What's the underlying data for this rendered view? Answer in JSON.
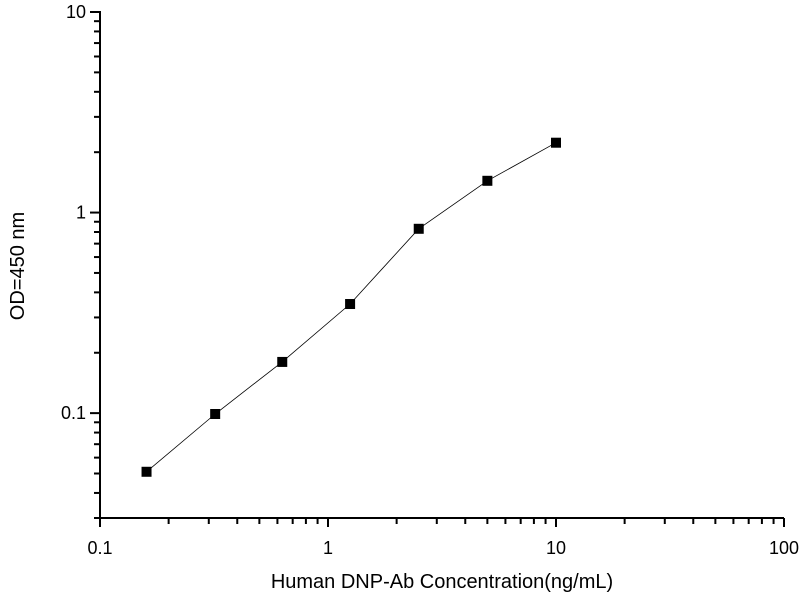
{
  "chart_data": {
    "type": "line",
    "title": "",
    "xlabel": "Human DNP-Ab Concentration(ng/mL)",
    "ylabel": "OD=450 nm",
    "xscale": "log",
    "yscale": "log",
    "xlim": [
      0.1,
      100
    ],
    "ylim": [
      0.03,
      10
    ],
    "xticks": [
      0.1,
      1,
      10,
      100
    ],
    "xtick_labels": [
      "0.1",
      "1",
      "10",
      "100"
    ],
    "yticks": [
      0.1,
      1,
      10
    ],
    "ytick_labels": [
      "0.1",
      "1",
      "10"
    ],
    "grid": false,
    "legend": "none",
    "marker": "square",
    "line_color": "#000000",
    "marker_color": "#000000",
    "series": [
      {
        "x": [
          0.16,
          0.32,
          0.63,
          1.25,
          2.5,
          5,
          10
        ],
        "y": [
          0.051,
          0.099,
          0.18,
          0.35,
          0.83,
          1.44,
          2.23
        ]
      }
    ]
  }
}
